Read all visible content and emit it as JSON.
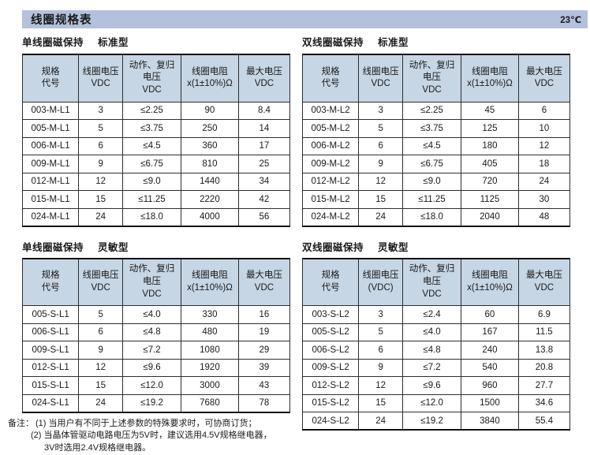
{
  "page": {
    "title": "线圈规格表",
    "temperature": "23℃"
  },
  "colors": {
    "title_bar_bg": "#b4c1dc",
    "table_header_bg": "#c6d6e5",
    "border": "#2e2e2e",
    "text": "#1a1a1a"
  },
  "tables": [
    {
      "section": "单线圈磁保持",
      "variant": "标准型",
      "headers": [
        "规格\n代号",
        "线圈电压\nVDC",
        "动作、复归\n电压\nVDC",
        "线圈电阻\nx(1±10%)Ω",
        "最大电压\nVDC"
      ],
      "rows": [
        [
          "003-M-L1",
          "3",
          "≤2.25",
          "90",
          "8.4"
        ],
        [
          "005-M-L1",
          "5",
          "≤3.75",
          "250",
          "14"
        ],
        [
          "006-M-L1",
          "6",
          "≤4.5",
          "360",
          "17"
        ],
        [
          "009-M-L1",
          "9",
          "≤6.75",
          "810",
          "25"
        ],
        [
          "012-M-L1",
          "12",
          "≤9.0",
          "1440",
          "34"
        ],
        [
          "015-M-L1",
          "15",
          "≤11.25",
          "2220",
          "42"
        ],
        [
          "024-M-L1",
          "24",
          "≤18.0",
          "4000",
          "56"
        ]
      ]
    },
    {
      "section": "双线圈磁保持",
      "variant": "标准型",
      "headers": [
        "规格\n代号",
        "线圈电压\nVDC",
        "动作、复归\n电压\nVDC",
        "线圈电阻\nx(1±10%)Ω",
        "最大电压\nVDC"
      ],
      "rows": [
        [
          "003-M-L2",
          "3",
          "≤2.25",
          "45",
          "6"
        ],
        [
          "005-M-L2",
          "5",
          "≤3.75",
          "125",
          "10"
        ],
        [
          "006-M-L2",
          "6",
          "≤4.5",
          "180",
          "12"
        ],
        [
          "009-M-L2",
          "9",
          "≤6.75",
          "405",
          "18"
        ],
        [
          "012-M-L2",
          "12",
          "≤9.0",
          "720",
          "24"
        ],
        [
          "015-M-L2",
          "15",
          "≤11.25",
          "1125",
          "30"
        ],
        [
          "024-M-L2",
          "24",
          "≤18.0",
          "2040",
          "48"
        ]
      ]
    },
    {
      "section": "单线圈磁保持",
      "variant": "灵敏型",
      "headers": [
        "规格\n代号",
        "线圈电压\nVDC",
        "动作、复归\n电压\nVDC",
        "线圈电阻\nx(1±10%)Ω",
        "最大电压\nVDC"
      ],
      "rows": [
        [
          "005-S-L1",
          "5",
          "≤4.0",
          "330",
          "16"
        ],
        [
          "006-S-L1",
          "6",
          "≤4.8",
          "480",
          "19"
        ],
        [
          "009-S-L1",
          "9",
          "≤7.2",
          "1080",
          "29"
        ],
        [
          "012-S-L1",
          "12",
          "≤9.6",
          "1920",
          "39"
        ],
        [
          "015-S-L1",
          "15",
          "≤12.0",
          "3000",
          "43"
        ],
        [
          "024-S-L1",
          "24",
          "≤19.2",
          "7680",
          "78"
        ]
      ]
    },
    {
      "section": "双线圈磁保持",
      "variant": "灵敏型",
      "headers": [
        "规格\n代号",
        "线圈电压\n(VDC)",
        "动作、复归\n电压\nVDC",
        "线圈电阻\nx(1±10%)Ω",
        "最大电压\nVDC"
      ],
      "rows": [
        [
          "003-S-L2",
          "3",
          "≤2.4",
          "60",
          "6.9"
        ],
        [
          "005-S-L2",
          "5",
          "≤4.0",
          "167",
          "11.5"
        ],
        [
          "006-S-L2",
          "6",
          "≤4.8",
          "240",
          "13.8"
        ],
        [
          "009-S-L2",
          "9",
          "≤7.2",
          "540",
          "20.8"
        ],
        [
          "012-S-L2",
          "12",
          "≤9.6",
          "960",
          "27.7"
        ],
        [
          "015-S-L2",
          "15",
          "≤12.0",
          "1500",
          "34.6"
        ],
        [
          "024-S-L2",
          "24",
          "≤19.2",
          "3840",
          "55.4"
        ]
      ]
    }
  ],
  "notes": {
    "label": "备注：",
    "lines": [
      "(1) 当用户有不同于上述参数的特殊要求时，可协商订货；",
      "(2) 当晶体管驱动电路电压为5V时，建议选用4.5V规格继电器，",
      "3V时选用2.4V规格继电器。"
    ]
  }
}
